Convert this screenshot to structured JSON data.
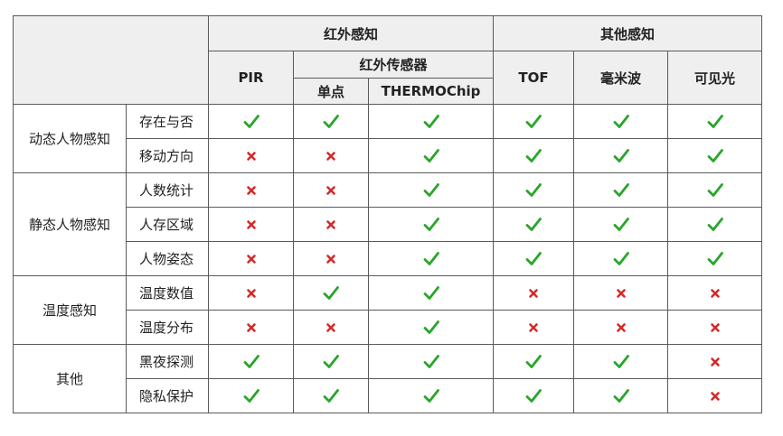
{
  "header": {
    "group_infrared": "红外感知",
    "group_other": "其他感知",
    "col_pir": "PIR",
    "sub_infrared_sensor": "红外传感器",
    "col_single_point": "单点",
    "col_thermochip": "THERMOChip",
    "col_tof": "TOF",
    "col_mmwave": "毫米波",
    "col_visible": "可见光"
  },
  "categories": [
    {
      "label": "动态人物感知",
      "features": [
        "存在与否",
        "移动方向"
      ]
    },
    {
      "label": "静态人物感知",
      "features": [
        "人数统计",
        "人存区域",
        "人物姿态"
      ]
    },
    {
      "label": "温度感知",
      "features": [
        "温度数值",
        "温度分布"
      ]
    },
    {
      "label": "其他",
      "features": [
        "黑夜探测",
        "隐私保护"
      ]
    }
  ],
  "icons": {
    "yes": "check-icon",
    "no": "cross-icon",
    "yes_color": "#2aa52a",
    "no_color": "#d42a2a"
  },
  "matrix": [
    [
      "yes",
      "yes",
      "yes",
      "yes",
      "yes",
      "yes"
    ],
    [
      "no",
      "no",
      "yes",
      "yes",
      "yes",
      "yes"
    ],
    [
      "no",
      "no",
      "yes",
      "yes",
      "yes",
      "yes"
    ],
    [
      "no",
      "no",
      "yes",
      "yes",
      "yes",
      "yes"
    ],
    [
      "no",
      "no",
      "yes",
      "yes",
      "yes",
      "yes"
    ],
    [
      "no",
      "yes",
      "yes",
      "no",
      "no",
      "no"
    ],
    [
      "no",
      "no",
      "yes",
      "no",
      "no",
      "no"
    ],
    [
      "yes",
      "yes",
      "yes",
      "yes",
      "yes",
      "no"
    ],
    [
      "yes",
      "yes",
      "yes",
      "yes",
      "yes",
      "no"
    ]
  ]
}
